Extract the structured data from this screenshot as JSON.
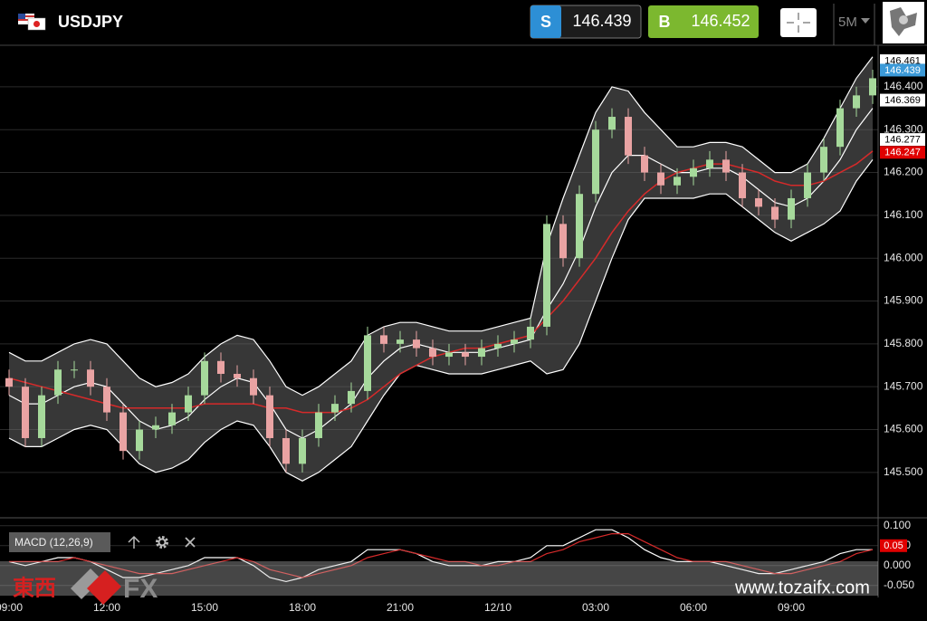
{
  "header": {
    "symbol": "USDJPY",
    "sell": {
      "label": "S",
      "price": 146.439,
      "color": "#2d8fd5"
    },
    "buy": {
      "label": "B",
      "price": 146.452,
      "color": "#7cb82f"
    },
    "timeframe": "5M"
  },
  "chart_data": [
    {
      "type": "candlestick",
      "categories": [
        "09:00",
        null,
        null,
        null,
        null,
        null,
        "12:00",
        null,
        null,
        null,
        null,
        null,
        "15:00",
        null,
        null,
        null,
        null,
        null,
        "18:00",
        null,
        null,
        null,
        null,
        null,
        "21:00",
        null,
        null,
        null,
        null,
        null,
        "12/10",
        null,
        null,
        null,
        null,
        null,
        "03:00",
        null,
        null,
        null,
        null,
        null,
        "06:00",
        null,
        null,
        null,
        null,
        null,
        "09:00",
        null,
        null,
        null,
        null,
        null
      ],
      "open": [
        145.72,
        145.7,
        145.58,
        145.68,
        145.74,
        145.74,
        145.7,
        145.64,
        145.55,
        145.6,
        145.61,
        145.64,
        145.68,
        145.76,
        145.73,
        145.72,
        145.68,
        145.58,
        145.52,
        145.58,
        145.64,
        145.66,
        145.69,
        145.82,
        145.8,
        145.81,
        145.79,
        145.77,
        145.78,
        145.77,
        145.79,
        145.8,
        145.81,
        145.84,
        146.08,
        146.0,
        146.15,
        146.3,
        146.33,
        146.24,
        146.2,
        146.17,
        146.19,
        146.21,
        146.23,
        146.2,
        146.14,
        146.12,
        146.09,
        146.14,
        146.2,
        146.26,
        146.35,
        146.38
      ],
      "high": [
        145.74,
        145.72,
        145.7,
        145.76,
        145.76,
        145.76,
        145.72,
        145.66,
        145.62,
        145.63,
        145.66,
        145.7,
        145.78,
        145.78,
        145.75,
        145.74,
        145.7,
        145.6,
        145.6,
        145.66,
        145.68,
        145.71,
        145.84,
        145.84,
        145.83,
        145.83,
        145.81,
        145.8,
        145.8,
        145.81,
        145.82,
        145.83,
        145.86,
        146.1,
        146.1,
        146.17,
        146.32,
        146.35,
        146.35,
        146.26,
        146.22,
        146.21,
        146.23,
        146.25,
        146.25,
        146.22,
        146.16,
        146.14,
        146.16,
        146.22,
        146.28,
        146.37,
        146.4,
        146.44
      ],
      "low": [
        145.68,
        145.56,
        145.56,
        145.66,
        145.72,
        145.68,
        145.62,
        145.53,
        145.53,
        145.58,
        145.59,
        145.62,
        145.66,
        145.71,
        145.7,
        145.66,
        145.56,
        145.5,
        145.5,
        145.56,
        145.62,
        145.64,
        145.67,
        145.78,
        145.78,
        145.77,
        145.75,
        145.75,
        145.75,
        145.75,
        145.77,
        145.78,
        145.79,
        145.82,
        145.98,
        145.98,
        146.13,
        146.28,
        146.22,
        146.18,
        146.15,
        146.15,
        146.17,
        146.19,
        146.18,
        146.12,
        146.1,
        146.07,
        146.07,
        146.12,
        146.18,
        146.24,
        146.33,
        146.36
      ],
      "close": [
        145.7,
        145.58,
        145.68,
        145.74,
        145.74,
        145.7,
        145.64,
        145.55,
        145.6,
        145.61,
        145.64,
        145.68,
        145.76,
        145.73,
        145.72,
        145.68,
        145.58,
        145.52,
        145.58,
        145.64,
        145.66,
        145.69,
        145.82,
        145.8,
        145.81,
        145.79,
        145.77,
        145.78,
        145.77,
        145.79,
        145.8,
        145.81,
        145.84,
        146.08,
        146.0,
        146.15,
        146.3,
        146.33,
        146.24,
        146.2,
        146.17,
        146.19,
        146.21,
        146.23,
        146.2,
        146.14,
        146.12,
        146.09,
        146.14,
        146.2,
        146.26,
        146.35,
        146.38,
        146.42
      ],
      "bollinger_upper": [
        145.78,
        145.76,
        145.76,
        145.78,
        145.8,
        145.81,
        145.8,
        145.76,
        145.72,
        145.7,
        145.71,
        145.73,
        145.77,
        145.8,
        145.82,
        145.81,
        145.76,
        145.7,
        145.68,
        145.7,
        145.73,
        145.76,
        145.82,
        145.84,
        145.85,
        145.85,
        145.84,
        145.83,
        145.83,
        145.83,
        145.84,
        145.85,
        145.86,
        146.03,
        146.14,
        146.24,
        146.34,
        146.4,
        146.39,
        146.34,
        146.3,
        146.26,
        146.26,
        146.27,
        146.27,
        146.26,
        146.23,
        146.2,
        146.2,
        146.22,
        146.28,
        146.35,
        146.42,
        146.47
      ],
      "bollinger_middle": [
        145.68,
        145.66,
        145.66,
        145.68,
        145.7,
        145.71,
        145.7,
        145.66,
        145.62,
        145.6,
        145.61,
        145.63,
        145.67,
        145.7,
        145.72,
        145.71,
        145.66,
        145.6,
        145.58,
        145.6,
        145.63,
        145.66,
        145.72,
        145.76,
        145.79,
        145.8,
        145.79,
        145.78,
        145.78,
        145.78,
        145.79,
        145.8,
        145.81,
        145.88,
        145.94,
        146.02,
        146.12,
        146.2,
        146.24,
        146.24,
        146.22,
        146.2,
        146.2,
        146.21,
        146.21,
        146.19,
        146.16,
        146.13,
        146.12,
        146.14,
        146.18,
        146.23,
        146.3,
        146.35
      ],
      "bollinger_lower": [
        145.58,
        145.56,
        145.56,
        145.58,
        145.6,
        145.61,
        145.6,
        145.56,
        145.52,
        145.5,
        145.51,
        145.53,
        145.57,
        145.6,
        145.62,
        145.61,
        145.56,
        145.5,
        145.48,
        145.5,
        145.53,
        145.56,
        145.62,
        145.68,
        145.73,
        145.75,
        145.74,
        145.73,
        145.73,
        145.73,
        145.74,
        145.75,
        145.76,
        145.73,
        145.74,
        145.8,
        145.9,
        146.0,
        146.09,
        146.14,
        146.14,
        146.14,
        146.14,
        146.15,
        146.15,
        146.12,
        146.09,
        146.06,
        146.04,
        146.06,
        146.08,
        146.11,
        146.18,
        146.23
      ],
      "moving_average": [
        145.72,
        145.71,
        145.7,
        145.69,
        145.68,
        145.67,
        145.66,
        145.65,
        145.65,
        145.65,
        145.65,
        145.65,
        145.66,
        145.66,
        145.66,
        145.66,
        145.65,
        145.65,
        145.64,
        145.64,
        145.64,
        145.65,
        145.67,
        145.7,
        145.73,
        145.75,
        145.77,
        145.78,
        145.79,
        145.79,
        145.8,
        145.81,
        145.82,
        145.86,
        145.9,
        145.95,
        146.0,
        146.06,
        146.11,
        146.15,
        146.18,
        146.2,
        146.21,
        146.22,
        146.22,
        146.21,
        146.2,
        146.18,
        146.17,
        146.17,
        146.18,
        146.2,
        146.22,
        146.25
      ],
      "up_color": "#a6d99b",
      "down_color": "#e9a3a3",
      "band_color": "#ffffff",
      "ma_color": "#d62a2a",
      "ylim": [
        145.394,
        146.497
      ],
      "yticks": [
        {
          "value": 145.5,
          "label": "145.500"
        },
        {
          "value": 145.6,
          "label": "145.600"
        },
        {
          "value": 145.7,
          "label": "145.700"
        },
        {
          "value": 145.8,
          "label": "145.800"
        },
        {
          "value": 145.9,
          "label": "145.900"
        },
        {
          "value": 146.0,
          "label": "146.000"
        },
        {
          "value": 146.1,
          "label": "146.100"
        },
        {
          "value": 146.2,
          "label": "146.200"
        },
        {
          "value": 146.3,
          "label": "146.300"
        },
        {
          "value": 146.4,
          "label": "146.400"
        }
      ],
      "grid": true,
      "price_tags": [
        {
          "value": 146.461,
          "label": "146.461",
          "color": "#ffffff",
          "text_color": "#000000"
        },
        {
          "value": 146.439,
          "label": "146.439",
          "color": "#3c9ad8",
          "text_color": "#ffffff"
        },
        {
          "value": 146.369,
          "label": "146.369",
          "color": "#ffffff",
          "text_color": "#000000"
        },
        {
          "value": 146.277,
          "label": "146.277",
          "color": "#ffffff",
          "text_color": "#000000"
        },
        {
          "value": 146.247,
          "label": "146.247",
          "color": "#e00000",
          "text_color": "#ffffff"
        }
      ]
    },
    {
      "type": "macd",
      "title": "MACD (12,26,9)",
      "macd": [
        0.01,
        0.0,
        0.01,
        0.02,
        0.02,
        0.01,
        -0.01,
        -0.03,
        -0.03,
        -0.02,
        -0.01,
        0.0,
        0.02,
        0.02,
        0.02,
        0.0,
        -0.03,
        -0.04,
        -0.03,
        -0.01,
        0.0,
        0.01,
        0.04,
        0.04,
        0.04,
        0.03,
        0.01,
        0.0,
        0.0,
        0.0,
        0.01,
        0.01,
        0.02,
        0.05,
        0.05,
        0.07,
        0.09,
        0.09,
        0.07,
        0.04,
        0.02,
        0.01,
        0.01,
        0.01,
        0.0,
        -0.01,
        -0.02,
        -0.02,
        -0.01,
        0.0,
        0.01,
        0.03,
        0.04,
        0.04
      ],
      "signal": [
        0.01,
        0.01,
        0.01,
        0.01,
        0.02,
        0.01,
        0.0,
        -0.01,
        -0.02,
        -0.02,
        -0.02,
        -0.01,
        0.0,
        0.01,
        0.02,
        0.01,
        -0.01,
        -0.02,
        -0.03,
        -0.02,
        -0.01,
        0.0,
        0.02,
        0.03,
        0.04,
        0.03,
        0.02,
        0.01,
        0.01,
        0.0,
        0.0,
        0.01,
        0.01,
        0.03,
        0.04,
        0.06,
        0.07,
        0.08,
        0.08,
        0.06,
        0.04,
        0.02,
        0.01,
        0.01,
        0.01,
        0.0,
        -0.01,
        -0.02,
        -0.02,
        -0.01,
        0.0,
        0.01,
        0.03,
        0.04
      ],
      "macd_color": "#ffffff",
      "signal_color": "#d62a2a",
      "ylim": [
        -0.08,
        0.12
      ],
      "yticks": [
        {
          "value": -0.05,
          "label": "-0.050"
        },
        {
          "value": 0,
          "label": "0.000"
        },
        {
          "value": 0.05,
          "label": "0.050"
        },
        {
          "value": 0.1,
          "label": "0.100"
        }
      ],
      "value_tag": {
        "value": 0.05,
        "color": "#e00000"
      }
    }
  ],
  "watermark": {
    "logo_text": "東西",
    "logo_suffix": "FX",
    "url": "www.tozaifx.com"
  }
}
